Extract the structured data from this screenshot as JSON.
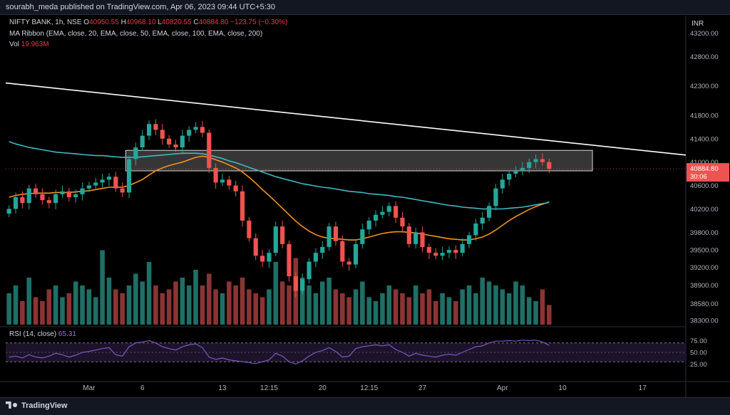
{
  "header": {
    "publisher_text": "sourabh_meda published on TradingView.com, Apr 06, 2023 09:44 UTC+5:30"
  },
  "legend": {
    "symbol": "NIFTY BANK, 1h, NSE",
    "open_label": "O",
    "open": "40950.55",
    "high_label": "H",
    "high": "40968.10",
    "low_label": "L",
    "low": "40820.55",
    "close_label": "C",
    "close": "40884.80",
    "change": "−123.75 (−0.30%)",
    "ma_ribbon": "MA Ribbon (EMA, close, 20, EMA, close, 50, EMA, close, 100, EMA, close, 200)",
    "vol_label": "Vol",
    "vol_value": "19.963M"
  },
  "rsi_legend": {
    "label": "RSI (14, close)",
    "value": "65.31"
  },
  "currency": "INR",
  "last_price_badge": {
    "price": "40884.80",
    "countdown": "30:06"
  },
  "footer": {
    "brand": "TradingView"
  },
  "colors": {
    "background": "#000000",
    "up": "#26a69a",
    "down": "#ef5350",
    "vol_up": "#1f6f66",
    "vol_down": "#8b3434",
    "ema_fast": "#f7931a",
    "ema_slow": "#3fb8c4",
    "trendline": "#ffffff",
    "zone_fill": "#787878",
    "rsi_line": "#7e57c2",
    "rsi_band": "#1f1530"
  },
  "chart_data": {
    "type": "candlestick",
    "symbol": "NIFTY BANK",
    "interval": "1h",
    "y_axis": {
      "ticks": [
        "43200.00",
        "42800.00",
        "42300.00",
        "41800.00",
        "41400.00",
        "41000.00",
        "40600.00",
        "40200.00",
        "39800.00",
        "39500.00",
        "39200.00",
        "38900.00",
        "38580.00",
        "38300.00"
      ],
      "ylim": [
        38200,
        43500
      ]
    },
    "x_axis": {
      "ticks": [
        {
          "label": "Mar",
          "i": 12
        },
        {
          "label": "6",
          "i": 20
        },
        {
          "label": "13",
          "i": 32
        },
        {
          "label": "12:15",
          "i": 39
        },
        {
          "label": "20",
          "i": 47
        },
        {
          "label": "12:15",
          "i": 54
        },
        {
          "label": "27",
          "i": 62
        },
        {
          "label": "Apr",
          "i": 74
        },
        {
          "label": "10",
          "i": 83
        },
        {
          "label": "17",
          "i": 95
        }
      ],
      "total_slots": 102
    },
    "closes": [
      40200,
      40400,
      40300,
      40550,
      40450,
      40350,
      40300,
      40450,
      40500,
      40400,
      40450,
      40550,
      40600,
      40650,
      40700,
      40750,
      40550,
      40480,
      41050,
      41250,
      41450,
      41650,
      41550,
      41400,
      41300,
      41250,
      41450,
      41550,
      41600,
      41500,
      40900,
      40650,
      40700,
      40600,
      40500,
      40000,
      39700,
      39400,
      39300,
      39450,
      39900,
      39600,
      39050,
      38800,
      39000,
      39300,
      39450,
      39550,
      39900,
      39650,
      39300,
      39250,
      39600,
      39850,
      40000,
      40100,
      40150,
      40250,
      40050,
      39900,
      39600,
      39800,
      39550,
      39450,
      39400,
      39450,
      39500,
      39450,
      39600,
      39750,
      39950,
      40050,
      40250,
      40550,
      40700,
      40800,
      40850,
      40900,
      41000,
      41050,
      41000,
      40884.8
    ],
    "volumes": [
      0.4,
      0.5,
      0.3,
      0.6,
      0.35,
      0.3,
      0.45,
      0.5,
      0.35,
      0.4,
      0.55,
      0.5,
      0.45,
      0.35,
      0.95,
      0.6,
      0.45,
      0.4,
      0.5,
      0.65,
      0.55,
      0.8,
      0.5,
      0.4,
      0.45,
      0.55,
      0.6,
      0.5,
      0.7,
      0.5,
      0.65,
      0.45,
      0.4,
      0.55,
      0.5,
      0.6,
      0.45,
      0.4,
      0.35,
      0.45,
      0.8,
      0.55,
      0.5,
      0.85,
      0.6,
      0.5,
      0.4,
      0.55,
      0.6,
      0.45,
      0.4,
      0.35,
      0.45,
      0.55,
      0.35,
      0.3,
      0.4,
      0.5,
      0.45,
      0.4,
      0.35,
      0.5,
      0.4,
      0.45,
      0.3,
      0.4,
      0.35,
      0.3,
      0.45,
      0.5,
      0.4,
      0.6,
      0.55,
      0.5,
      0.45,
      0.4,
      0.55,
      0.5,
      0.35,
      0.3,
      0.45,
      0.25
    ],
    "series": [
      {
        "kind": "ema",
        "values": [
          40400,
          40430,
          40450,
          40460,
          40470,
          40470,
          40470,
          40480,
          40480,
          40480,
          40490,
          40500,
          40510,
          40530,
          40550,
          40570,
          40570,
          40570,
          40600,
          40650,
          40700,
          40780,
          40850,
          40900,
          40940,
          40970,
          41000,
          41040,
          41080,
          41100,
          41080,
          41040,
          41000,
          40950,
          40900,
          40830,
          40740,
          40640,
          40530,
          40430,
          40320,
          40210,
          40100,
          39990,
          39900,
          39820,
          39760,
          39720,
          39700,
          39690,
          39680,
          39670,
          39670,
          39690,
          39720,
          39750,
          39780,
          39800,
          39810,
          39810,
          39800,
          39790,
          39770,
          39750,
          39730,
          39710,
          39690,
          39680,
          39670,
          39670,
          39690,
          39720,
          39770,
          39840,
          39920,
          40000,
          40070,
          40130,
          40190,
          40240,
          40280,
          40320
        ]
      },
      {
        "kind": "ema",
        "values": [
          41350,
          41310,
          41280,
          41250,
          41230,
          41210,
          41190,
          41170,
          41160,
          41150,
          41140,
          41130,
          41120,
          41110,
          41110,
          41100,
          41090,
          41080,
          41080,
          41080,
          41090,
          41100,
          41110,
          41120,
          41130,
          41140,
          41150,
          41150,
          41150,
          41140,
          41120,
          41090,
          41060,
          41020,
          40990,
          40950,
          40910,
          40870,
          40830,
          40790,
          40750,
          40720,
          40690,
          40660,
          40630,
          40610,
          40590,
          40570,
          40560,
          40540,
          40520,
          40500,
          40490,
          40480,
          40460,
          40450,
          40440,
          40430,
          40410,
          40400,
          40380,
          40360,
          40340,
          40320,
          40300,
          40280,
          40260,
          40250,
          40230,
          40220,
          40210,
          40200,
          40200,
          40200,
          40200,
          40210,
          40220,
          40230,
          40250,
          40270,
          40290,
          40310
        ]
      }
    ],
    "resistance_zone": {
      "from_i": 18,
      "to_i": 87,
      "low": 40850,
      "high": 41200
    },
    "trendline": {
      "from": {
        "i": 0,
        "price": 42350
      },
      "to": {
        "i": 101,
        "price": 41120
      }
    },
    "rsi": {
      "ticks": [
        "75.00",
        "50.00",
        "25.00"
      ],
      "upper": 70,
      "lower": 30,
      "values": [
        40,
        42,
        38,
        45,
        40,
        38,
        42,
        48,
        45,
        40,
        44,
        50,
        52,
        55,
        58,
        60,
        45,
        42,
        62,
        70,
        72,
        75,
        70,
        62,
        58,
        55,
        62,
        66,
        68,
        60,
        40,
        35,
        38,
        34,
        32,
        30,
        28,
        26,
        30,
        34,
        48,
        42,
        30,
        25,
        32,
        42,
        50,
        54,
        60,
        52,
        40,
        42,
        58,
        62,
        64,
        66,
        64,
        66,
        56,
        50,
        42,
        48,
        44,
        42,
        40,
        44,
        46,
        44,
        50,
        56,
        62,
        64,
        70,
        74,
        74,
        75,
        74,
        76,
        75,
        76,
        72,
        65.31
      ]
    }
  }
}
